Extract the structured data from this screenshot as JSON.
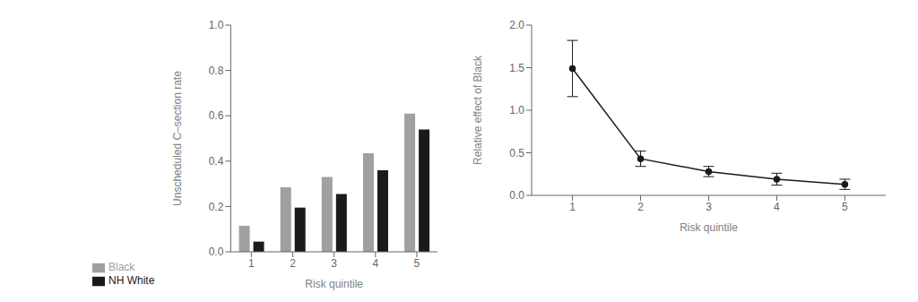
{
  "chart_data": [
    {
      "type": "bar",
      "categories": [
        "1",
        "2",
        "3",
        "4",
        "5"
      ],
      "series": [
        {
          "name": "Black",
          "color": "#a0a0a0",
          "values": [
            0.115,
            0.285,
            0.33,
            0.435,
            0.61
          ]
        },
        {
          "name": "NH White",
          "color": "#1a1a1a",
          "values": [
            0.045,
            0.195,
            0.255,
            0.36,
            0.54
          ]
        }
      ],
      "xlabel": "Risk quintile",
      "ylabel": "Unscheduled C–section rate",
      "ylim": [
        0.0,
        1.0
      ],
      "yticks": [
        {
          "value": 0.0,
          "label": "0.0"
        },
        0.2,
        0.4,
        0.6,
        0.8,
        {
          "value": 1.0,
          "label": "1.0"
        }
      ],
      "grid": false,
      "legend": "lower left"
    },
    {
      "type": "line",
      "x": [
        1,
        2,
        3,
        4,
        5
      ],
      "values": [
        1.49,
        0.43,
        0.28,
        0.19,
        0.13
      ],
      "error_low": [
        0.33,
        0.09,
        0.06,
        0.07,
        0.06
      ],
      "error_high": [
        0.33,
        0.09,
        0.06,
        0.07,
        0.06
      ],
      "color": "#1a1a1a",
      "marker": "o",
      "line_style": "solid",
      "xlabel": "Risk quintile",
      "ylabel": "Relative effect of Black",
      "xlim": [
        0.4,
        5.6
      ],
      "xticks": [
        1,
        2,
        3,
        4,
        5
      ],
      "ylim": [
        0.0,
        2.0
      ],
      "yticks": [
        {
          "value": 0.0,
          "label": "0.0"
        },
        0.5,
        {
          "value": 1.0,
          "label": "1.0"
        },
        1.5,
        {
          "value": 2.0,
          "label": "2.0"
        }
      ],
      "grid": false
    }
  ]
}
